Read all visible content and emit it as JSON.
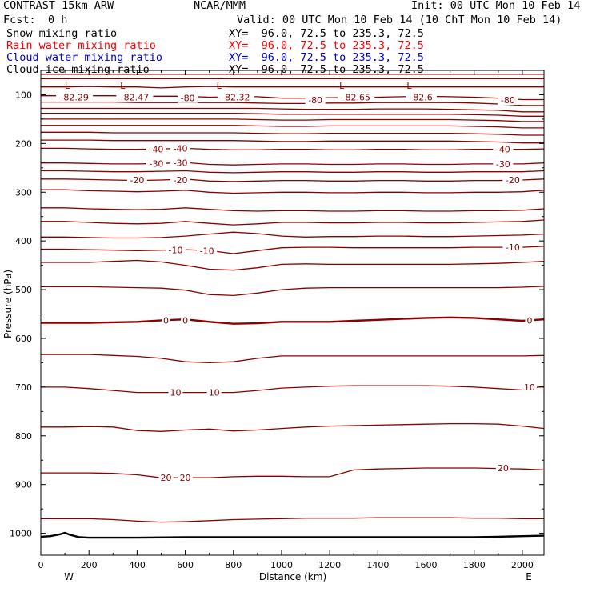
{
  "header": {
    "title": "CONTRAST 15km ARW",
    "center": "NCAR/MMM",
    "init": "Init: 00 UTC Mon 10 Feb 14",
    "fcst_label": "Fcst:",
    "fcst_value": "0 h",
    "valid": "Valid: 00 UTC Mon 10 Feb 14 (10 ChT Mon 10 Feb 14)",
    "fields": [
      {
        "label": "Snow mixing ratio",
        "xy": "XY=  96.0, 72.5 to 235.3, 72.5",
        "color": "#000000"
      },
      {
        "label": "Rain water mixing ratio",
        "xy": "XY=  96.0, 72.5 to 235.3, 72.5",
        "color": "#ff0000"
      },
      {
        "label": "Cloud water mixing ratio",
        "xy": "XY=  96.0, 72.5 to 235.3, 72.5",
        "color": "#0000cc"
      },
      {
        "label": "Cloud ice mixing ratio",
        "xy": "XY=  96.0, 72.5 to 235.3, 72.5",
        "color": "#000000"
      }
    ]
  },
  "chart_data": {
    "type": "line",
    "subtype": "vertical cross-section contour plot",
    "xlabel": "Distance (km)",
    "ylabel": "Pressure (hPa)",
    "x_range": [
      0,
      2090
    ],
    "y_range": [
      50,
      1045
    ],
    "y_axis_inverted": true,
    "x_ticks": [
      0,
      200,
      400,
      600,
      800,
      1000,
      1200,
      1400,
      1600,
      1800,
      2000
    ],
    "y_ticks": [
      100,
      200,
      300,
      400,
      500,
      600,
      700,
      800,
      900,
      1000
    ],
    "x_end_labels": {
      "left": "W",
      "right": "E"
    },
    "grid": false,
    "contour_color": "#8b0000",
    "x": [
      0,
      100,
      200,
      300,
      400,
      500,
      600,
      700,
      800,
      900,
      1000,
      1100,
      1200,
      1300,
      1400,
      1500,
      1600,
      1700,
      1800,
      1900,
      2000,
      2090
    ],
    "contours": [
      {
        "y": [
          58,
          58,
          58,
          58,
          58,
          58,
          58,
          58,
          58,
          58,
          58,
          58,
          58,
          58,
          58,
          58,
          58,
          58,
          58,
          58,
          58,
          58
        ]
      },
      {
        "y": [
          67,
          67,
          67,
          67,
          67,
          67,
          67,
          67,
          67,
          67,
          67,
          67,
          67,
          67,
          67,
          67,
          67,
          67,
          67,
          67,
          67,
          67
        ]
      },
      {
        "y": [
          84,
          84,
          83,
          84,
          84,
          86,
          84,
          83,
          84,
          84,
          84,
          84,
          84,
          84,
          84,
          84,
          84,
          84,
          84,
          84,
          84,
          84
        ]
      },
      {
        "value": -80,
        "y": [
          102,
          102,
          102,
          102,
          103,
          103,
          103,
          105,
          104,
          104,
          107,
          107,
          106,
          106,
          105,
          104,
          103,
          104,
          105,
          107,
          110,
          110
        ]
      },
      {
        "y": [
          115,
          115,
          115,
          115,
          116,
          116,
          116,
          116,
          116,
          117,
          118,
          118,
          117,
          117,
          116,
          116,
          116,
          116,
          117,
          119,
          122,
          122
        ]
      },
      {
        "y": [
          128,
          128,
          128,
          128,
          128,
          128,
          128,
          128,
          128,
          128,
          129,
          130,
          130,
          130,
          129,
          129,
          129,
          130,
          131,
          132,
          135,
          135
        ]
      },
      {
        "y": [
          138,
          138,
          138,
          138,
          138,
          138,
          138,
          138,
          138,
          139,
          140,
          140,
          140,
          140,
          140,
          140,
          140,
          140,
          141,
          142,
          144,
          144
        ]
      },
      {
        "y": [
          150,
          150,
          150,
          150,
          150,
          150,
          150,
          150,
          150,
          151,
          152,
          152,
          151,
          151,
          151,
          151,
          151,
          151,
          152,
          153,
          155,
          155
        ]
      },
      {
        "y": [
          163,
          163,
          163,
          163,
          163,
          163,
          163,
          163,
          163,
          164,
          165,
          165,
          164,
          164,
          164,
          164,
          164,
          164,
          165,
          166,
          168,
          168
        ]
      },
      {
        "y": [
          177,
          177,
          177,
          178,
          178,
          178,
          178,
          178,
          178,
          179,
          180,
          180,
          179,
          179,
          179,
          179,
          179,
          179,
          180,
          181,
          183,
          183
        ]
      },
      {
        "y": [
          193,
          193,
          193,
          194,
          194,
          194,
          194,
          194,
          194,
          195,
          196,
          196,
          195,
          195,
          195,
          195,
          195,
          195,
          196,
          197,
          199,
          199
        ]
      },
      {
        "value": -40,
        "y": [
          210,
          210,
          211,
          212,
          212,
          211,
          210,
          212,
          213,
          213,
          212,
          212,
          213,
          213,
          212,
          212,
          213,
          213,
          212,
          212,
          212,
          211
        ]
      },
      {
        "value": -30,
        "y": [
          240,
          240,
          241,
          242,
          242,
          241,
          239,
          243,
          244,
          243,
          242,
          242,
          243,
          243,
          242,
          242,
          243,
          243,
          242,
          242,
          242,
          240
        ]
      },
      {
        "y": [
          256,
          256,
          257,
          258,
          258,
          257,
          256,
          259,
          260,
          259,
          258,
          258,
          259,
          259,
          258,
          258,
          259,
          259,
          258,
          258,
          258,
          256
        ]
      },
      {
        "value": -20,
        "y": [
          273,
          273,
          274,
          275,
          276,
          275,
          273,
          277,
          278,
          277,
          276,
          276,
          277,
          277,
          276,
          276,
          277,
          277,
          276,
          276,
          275,
          273
        ]
      },
      {
        "y": [
          295,
          295,
          297,
          298,
          299,
          298,
          296,
          300,
          302,
          301,
          300,
          300,
          301,
          301,
          300,
          300,
          301,
          301,
          300,
          300,
          299,
          296
        ]
      },
      {
        "y": [
          332,
          332,
          334,
          335,
          336,
          335,
          332,
          335,
          338,
          339,
          338,
          338,
          339,
          339,
          338,
          338,
          339,
          339,
          338,
          338,
          337,
          334
        ]
      },
      {
        "y": [
          360,
          360,
          362,
          364,
          365,
          364,
          360,
          364,
          367,
          365,
          362,
          362,
          363,
          363,
          362,
          362,
          363,
          363,
          362,
          361,
          360,
          357
        ]
      },
      {
        "y": [
          392,
          392,
          393,
          394,
          394,
          393,
          390,
          386,
          382,
          385,
          390,
          392,
          391,
          391,
          390,
          390,
          391,
          391,
          390,
          389,
          388,
          386
        ]
      },
      {
        "value": -10,
        "y": [
          417,
          417,
          418,
          419,
          420,
          419,
          418,
          420,
          426,
          420,
          414,
          413,
          413,
          414,
          414,
          414,
          414,
          414,
          413,
          413,
          413,
          411
        ]
      },
      {
        "y": [
          444,
          444,
          444,
          442,
          440,
          443,
          450,
          458,
          460,
          455,
          448,
          447,
          448,
          448,
          448,
          448,
          448,
          448,
          447,
          446,
          444,
          442
        ]
      },
      {
        "y": [
          494,
          494,
          494,
          495,
          496,
          497,
          501,
          510,
          512,
          507,
          500,
          497,
          496,
          496,
          496,
          496,
          496,
          496,
          496,
          496,
          495,
          493
        ]
      },
      {
        "value": 0,
        "y": [
          568,
          568,
          568,
          567,
          566,
          563,
          561,
          566,
          570,
          569,
          566,
          566,
          566,
          564,
          562,
          560,
          558,
          557,
          558,
          561,
          564,
          561
        ],
        "bold": true
      },
      {
        "y": [
          633,
          633,
          633,
          635,
          637,
          641,
          648,
          650,
          648,
          641,
          636,
          636,
          636,
          636,
          636,
          636,
          636,
          636,
          636,
          636,
          636,
          635
        ]
      },
      {
        "value": 10,
        "y": [
          700,
          700,
          703,
          707,
          711,
          711,
          711,
          711,
          711,
          707,
          702,
          700,
          698,
          697,
          697,
          697,
          697,
          698,
          700,
          703,
          706,
          698
        ]
      },
      {
        "y": [
          782,
          782,
          781,
          782,
          789,
          791,
          788,
          786,
          790,
          788,
          785,
          782,
          780,
          779,
          778,
          777,
          776,
          775,
          775,
          776,
          780,
          785
        ]
      },
      {
        "value": 20,
        "y": [
          876,
          876,
          876,
          877,
          880,
          886,
          886,
          886,
          884,
          883,
          883,
          884,
          884,
          870,
          868,
          867,
          866,
          866,
          866,
          867,
          868,
          870
        ]
      },
      {
        "y": [
          970,
          970,
          970,
          972,
          975,
          977,
          976,
          974,
          972,
          971,
          970,
          969,
          969,
          969,
          968,
          968,
          968,
          968,
          969,
          969,
          970,
          970
        ]
      }
    ],
    "contour_labels": [
      {
        "text": "-82.29",
        "x": 140,
        "y": 105
      },
      {
        "text": "-82.47",
        "x": 390,
        "y": 105
      },
      {
        "text": "-80",
        "x": 610,
        "y": 107
      },
      {
        "text": "-82.32",
        "x": 810,
        "y": 105
      },
      {
        "text": "-80",
        "x": 1140,
        "y": 111
      },
      {
        "text": "-82.65",
        "x": 1310,
        "y": 105
      },
      {
        "text": "-82.6",
        "x": 1580,
        "y": 105
      },
      {
        "text": "-80",
        "x": 1940,
        "y": 111
      },
      {
        "text": "-40",
        "x": 480,
        "y": 212
      },
      {
        "text": "-40",
        "x": 580,
        "y": 210
      },
      {
        "text": "-40",
        "x": 1920,
        "y": 212
      },
      {
        "text": "-30",
        "x": 480,
        "y": 241
      },
      {
        "text": "-30",
        "x": 580,
        "y": 240
      },
      {
        "text": "-30",
        "x": 1920,
        "y": 242
      },
      {
        "text": "-20",
        "x": 400,
        "y": 275
      },
      {
        "text": "-20",
        "x": 580,
        "y": 275
      },
      {
        "text": "-20",
        "x": 1960,
        "y": 275
      },
      {
        "text": "-10",
        "x": 560,
        "y": 419
      },
      {
        "text": "-10",
        "x": 690,
        "y": 420
      },
      {
        "text": "-10",
        "x": 1960,
        "y": 413
      },
      {
        "text": "0",
        "x": 520,
        "y": 563
      },
      {
        "text": "0",
        "x": 600,
        "y": 563
      },
      {
        "text": "0",
        "x": 2030,
        "y": 563
      },
      {
        "text": "10",
        "x": 560,
        "y": 711
      },
      {
        "text": "10",
        "x": 720,
        "y": 711
      },
      {
        "text": "10",
        "x": 2030,
        "y": 700
      },
      {
        "text": "20",
        "x": 520,
        "y": 886
      },
      {
        "text": "20",
        "x": 600,
        "y": 886
      },
      {
        "text": "20",
        "x": 1920,
        "y": 866
      }
    ],
    "low_markers": [
      {
        "text": "L",
        "x": 110
      },
      {
        "text": "L",
        "x": 340
      },
      {
        "text": "L",
        "x": 740
      },
      {
        "text": "L",
        "x": 1250
      },
      {
        "text": "L",
        "x": 1530
      }
    ],
    "terrain": {
      "x": [
        0,
        40,
        80,
        100,
        120,
        160,
        200,
        400,
        600,
        800,
        1000,
        1200,
        1400,
        1600,
        1800,
        1900,
        2000,
        2090
      ],
      "y": [
        1007,
        1006,
        1002,
        999,
        1003,
        1008,
        1009,
        1009,
        1008,
        1008,
        1008,
        1008,
        1008,
        1008,
        1008,
        1007,
        1006,
        1005
      ]
    }
  }
}
